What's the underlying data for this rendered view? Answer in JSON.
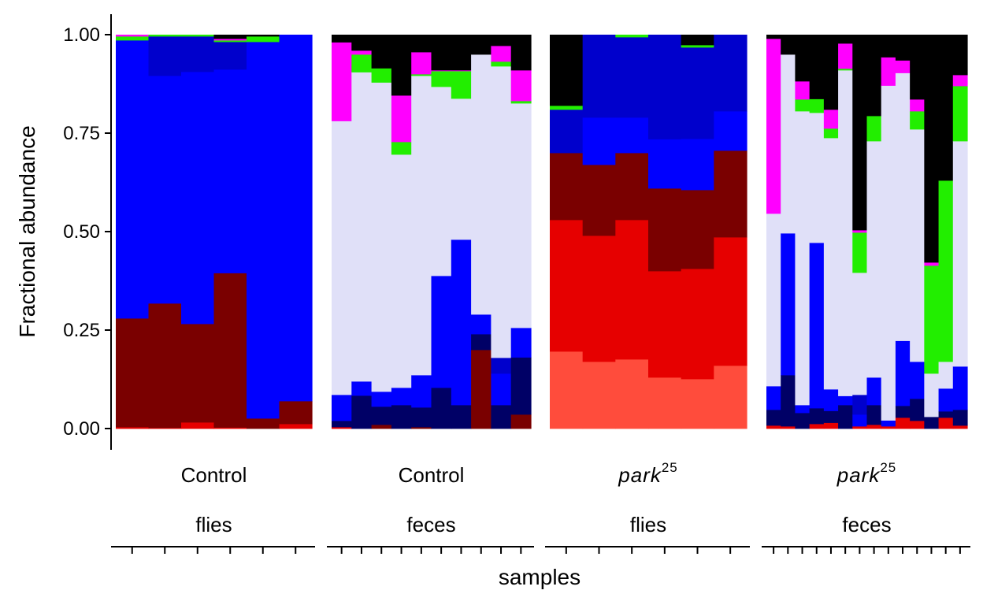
{
  "chart_data": {
    "type": "bar",
    "stacked": true,
    "ylabel": "Fractional abundance",
    "xlabel": "samples",
    "ylim": [
      0,
      1
    ],
    "yticks": [
      "0.00",
      "0.25",
      "0.50",
      "0.75",
      "1.00"
    ],
    "ytick_values": [
      0,
      0.25,
      0.5,
      0.75,
      1
    ],
    "taxa_colors": [
      "#ff4c3c",
      "#e60000",
      "#c00000",
      "#7a0000",
      "#000066",
      "#0000ff",
      "#0000cc",
      "#e0e0f8",
      "#22ee00",
      "#ff00ff",
      "#000000"
    ],
    "panels": [
      {
        "strip_top": "Control",
        "strip_top_sup": "",
        "strip_italic": false,
        "strip_bottom": "flies",
        "samples": [
          [
            0,
            0.004,
            0,
            0.276,
            0,
            0.706,
            0,
            0,
            0.01,
            0.004,
            0
          ],
          [
            0,
            0.002,
            0,
            0.316,
            0,
            0.578,
            0.1,
            0,
            0.004,
            0,
            0
          ],
          [
            0,
            0.016,
            0,
            0.25,
            0,
            0.64,
            0.09,
            0,
            0.004,
            0,
            0
          ],
          [
            0,
            0.003,
            0,
            0.392,
            0,
            0.517,
            0.07,
            0,
            0.004,
            0.004,
            0.01
          ],
          [
            0,
            0,
            0,
            0.026,
            0,
            0.956,
            0,
            0,
            0.014,
            0,
            0.004
          ],
          [
            0,
            0.012,
            0,
            0.058,
            0,
            0.93,
            0,
            0,
            0,
            0,
            0
          ]
        ]
      },
      {
        "strip_top": "Control",
        "strip_top_sup": "",
        "strip_italic": false,
        "strip_bottom": "feces",
        "samples": [
          [
            0,
            0.004,
            0,
            0,
            0.016,
            0.066,
            0,
            0.695,
            0,
            0.2,
            0.019
          ],
          [
            0,
            0,
            0,
            0,
            0.084,
            0.036,
            0,
            0.785,
            0.045,
            0.01,
            0.04
          ],
          [
            0,
            0,
            0,
            0.01,
            0.046,
            0.038,
            0,
            0.785,
            0.036,
            0,
            0.085
          ],
          [
            0,
            0,
            0,
            0,
            0.06,
            0.044,
            0,
            0.592,
            0.032,
            0.118,
            0.154
          ],
          [
            0,
            0,
            0,
            0.004,
            0.05,
            0.082,
            0,
            0.76,
            0.004,
            0.056,
            0.044
          ],
          [
            0,
            0,
            0,
            0,
            0.104,
            0.284,
            0,
            0.48,
            0.04,
            0.002,
            0.09
          ],
          [
            0,
            0,
            0,
            0,
            0.06,
            0.42,
            0,
            0.358,
            0.07,
            0.002,
            0.09
          ],
          [
            0,
            0,
            0,
            0.2,
            0.04,
            0.05,
            0,
            0.66,
            0,
            0,
            0.05
          ],
          [
            0,
            0,
            0,
            0,
            0.06,
            0.08,
            0.04,
            0.74,
            0.012,
            0.04,
            0.028
          ],
          [
            0,
            0,
            0,
            0.036,
            0.145,
            0.075,
            0,
            0.57,
            0.006,
            0.078,
            0.09
          ]
        ]
      },
      {
        "strip_top": "park",
        "strip_top_sup": "25",
        "strip_italic": true,
        "strip_bottom": "flies",
        "samples": [
          [
            0.196,
            0.334,
            0,
            0.17,
            0,
            0,
            0.11,
            0,
            0.01,
            0,
            0.18
          ],
          [
            0.17,
            0.32,
            0,
            0.18,
            0,
            0.12,
            0.21,
            0,
            0,
            0,
            0
          ],
          [
            0.176,
            0.354,
            0,
            0.17,
            0,
            0.09,
            0.204,
            0,
            0.006,
            0,
            0
          ],
          [
            0.13,
            0.27,
            0,
            0.21,
            0,
            0.125,
            0.265,
            0,
            0,
            0,
            0
          ],
          [
            0.126,
            0.28,
            0,
            0.2,
            0,
            0.13,
            0.232,
            0,
            0.006,
            0,
            0.026
          ],
          [
            0.16,
            0.326,
            0,
            0.22,
            0,
            0.1,
            0.194,
            0,
            0,
            0,
            0
          ]
        ]
      },
      {
        "strip_top": "park",
        "strip_top_sup": "25",
        "strip_italic": true,
        "strip_bottom": "feces",
        "samples": [
          [
            0,
            0.008,
            0,
            0,
            0.04,
            0.06,
            0,
            0.438,
            0,
            0.444,
            0.01
          ],
          [
            0,
            0.006,
            0,
            0,
            0.13,
            0.36,
            0,
            0.454,
            0,
            0,
            0.05
          ],
          [
            0,
            0,
            0,
            0,
            0.04,
            0.02,
            0,
            0.746,
            0.03,
            0.046,
            0.118
          ],
          [
            0,
            0.012,
            0,
            0,
            0.04,
            0.42,
            0,
            0.33,
            0.035,
            0,
            0.163
          ],
          [
            0,
            0.015,
            0,
            0,
            0.03,
            0.055,
            0,
            0.638,
            0.024,
            0.048,
            0.19
          ],
          [
            0,
            0,
            0,
            0,
            0.06,
            0.023,
            0,
            0.827,
            0.004,
            0.064,
            0.022
          ],
          [
            0,
            0.006,
            0,
            0,
            0,
            0.03,
            0.05,
            0.31,
            0.102,
            0.006,
            0.496
          ],
          [
            0,
            0.01,
            0,
            0,
            0.05,
            0.07,
            0,
            0.6,
            0.064,
            0,
            0.206
          ],
          [
            0,
            0.006,
            0,
            0,
            0,
            0.015,
            0,
            0.85,
            0,
            0.072,
            0.057
          ],
          [
            0,
            0.028,
            0,
            0,
            0.03,
            0.165,
            0,
            0.68,
            0,
            0.032,
            0.065
          ],
          [
            0,
            0.02,
            0,
            0,
            0.056,
            0.094,
            0,
            0.59,
            0.046,
            0.03,
            0.164
          ],
          [
            0,
            0,
            0,
            0,
            0.03,
            0,
            0,
            0.11,
            0.274,
            0.008,
            0.578
          ],
          [
            0,
            0.028,
            0,
            0,
            0.016,
            0.058,
            0,
            0.068,
            0.46,
            0,
            0.37
          ],
          [
            0,
            0.008,
            0,
            0,
            0.04,
            0.11,
            0,
            0.572,
            0.14,
            0.028,
            0.102
          ]
        ]
      }
    ]
  }
}
